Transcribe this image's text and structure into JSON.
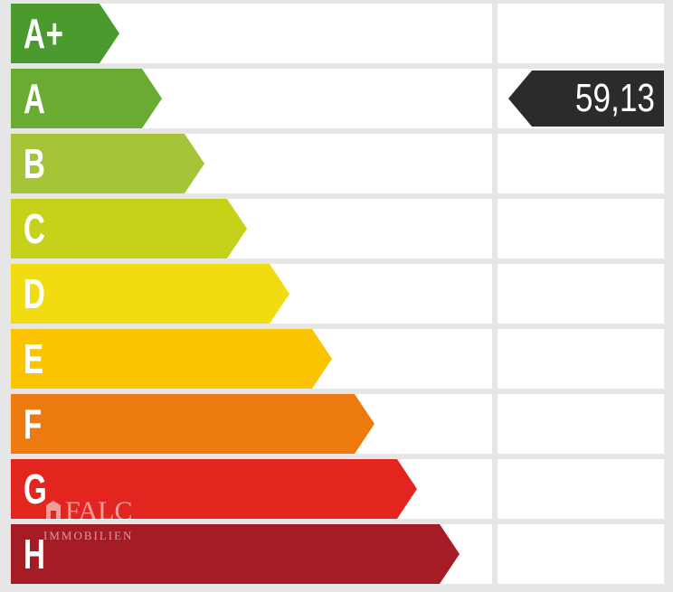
{
  "energy_label": {
    "classes": [
      {
        "label": "A+",
        "color": "#4a9a2e"
      },
      {
        "label": "A",
        "color": "#6aab31"
      },
      {
        "label": "B",
        "color": "#a6c437"
      },
      {
        "label": "C",
        "color": "#c6d21a"
      },
      {
        "label": "D",
        "color": "#f0dc10"
      },
      {
        "label": "E",
        "color": "#fbc400"
      },
      {
        "label": "F",
        "color": "#ec7a0e"
      },
      {
        "label": "G",
        "color": "#e3251f"
      },
      {
        "label": "H",
        "color": "#a51c24"
      }
    ],
    "rating": {
      "value": "59,13",
      "class_index": 1,
      "color": "#2b2b2b"
    }
  },
  "watermark": {
    "brand": "FALC",
    "sub": "IMMOBILIEN"
  }
}
